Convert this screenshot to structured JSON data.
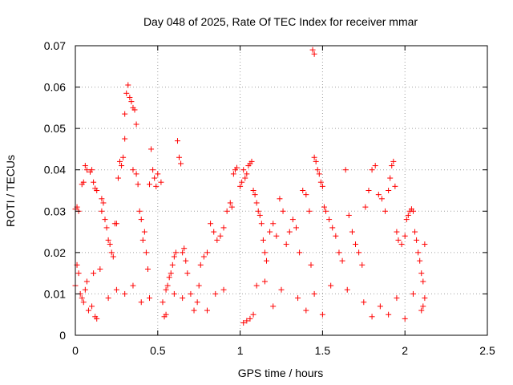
{
  "chart_data": {
    "type": "scatter",
    "title": "Day 048 of 2025, Rate Of TEC Index for receiver mmar",
    "xlabel": "GPS time / hours",
    "ylabel": "ROTI / TECUs",
    "xlim": [
      0,
      2.5
    ],
    "ylim": [
      0,
      0.07
    ],
    "x_ticks": [
      0,
      0.5,
      1,
      1.5,
      2,
      2.5
    ],
    "x_tick_labels": [
      "0",
      "0.5",
      "1",
      "1.5",
      "2",
      "2.5"
    ],
    "y_ticks": [
      0,
      0.01,
      0.02,
      0.03,
      0.04,
      0.05,
      0.06,
      0.07
    ],
    "y_tick_labels": [
      "0",
      "0.01",
      "0.02",
      "0.03",
      "0.04",
      "0.05",
      "0.06",
      "0.07"
    ],
    "grid": true,
    "marker": "+",
    "color": "#ff0000",
    "series": [
      {
        "name": "ROTI",
        "points": [
          [
            0.0,
            0.0305
          ],
          [
            0.01,
            0.031
          ],
          [
            0.02,
            0.03
          ],
          [
            0.01,
            0.017
          ],
          [
            0.02,
            0.015
          ],
          [
            0.0,
            0.012
          ],
          [
            0.03,
            0.01
          ],
          [
            0.04,
            0.009
          ],
          [
            0.05,
            0.008
          ],
          [
            0.06,
            0.011
          ],
          [
            0.07,
            0.013
          ],
          [
            0.08,
            0.006
          ],
          [
            0.04,
            0.0365
          ],
          [
            0.05,
            0.037
          ],
          [
            0.06,
            0.041
          ],
          [
            0.07,
            0.04
          ],
          [
            0.09,
            0.0395
          ],
          [
            0.1,
            0.04
          ],
          [
            0.11,
            0.037
          ],
          [
            0.12,
            0.0355
          ],
          [
            0.13,
            0.035
          ],
          [
            0.13,
            0.004
          ],
          [
            0.12,
            0.0045
          ],
          [
            0.1,
            0.007
          ],
          [
            0.11,
            0.015
          ],
          [
            0.15,
            0.016
          ],
          [
            0.16,
            0.033
          ],
          [
            0.16,
            0.03
          ],
          [
            0.17,
            0.032
          ],
          [
            0.18,
            0.028
          ],
          [
            0.19,
            0.026
          ],
          [
            0.2,
            0.023
          ],
          [
            0.21,
            0.022
          ],
          [
            0.22,
            0.02
          ],
          [
            0.23,
            0.019
          ],
          [
            0.24,
            0.027
          ],
          [
            0.25,
            0.027
          ],
          [
            0.26,
            0.038
          ],
          [
            0.27,
            0.042
          ],
          [
            0.28,
            0.041
          ],
          [
            0.29,
            0.043
          ],
          [
            0.3,
            0.0475
          ],
          [
            0.3,
            0.0535
          ],
          [
            0.31,
            0.0585
          ],
          [
            0.32,
            0.0605
          ],
          [
            0.33,
            0.0575
          ],
          [
            0.34,
            0.0565
          ],
          [
            0.35,
            0.055
          ],
          [
            0.36,
            0.0545
          ],
          [
            0.37,
            0.051
          ],
          [
            0.35,
            0.04
          ],
          [
            0.37,
            0.039
          ],
          [
            0.38,
            0.0365
          ],
          [
            0.39,
            0.03
          ],
          [
            0.4,
            0.028
          ],
          [
            0.41,
            0.023
          ],
          [
            0.42,
            0.025
          ],
          [
            0.43,
            0.02
          ],
          [
            0.44,
            0.016
          ],
          [
            0.45,
            0.0365
          ],
          [
            0.46,
            0.045
          ],
          [
            0.47,
            0.04
          ],
          [
            0.48,
            0.038
          ],
          [
            0.49,
            0.036
          ],
          [
            0.5,
            0.039
          ],
          [
            0.52,
            0.037
          ],
          [
            0.53,
            0.008
          ],
          [
            0.54,
            0.0045
          ],
          [
            0.55,
            0.005
          ],
          [
            0.56,
            0.012
          ],
          [
            0.57,
            0.014
          ],
          [
            0.58,
            0.015
          ],
          [
            0.59,
            0.017
          ],
          [
            0.6,
            0.019
          ],
          [
            0.61,
            0.02
          ],
          [
            0.62,
            0.047
          ],
          [
            0.63,
            0.043
          ],
          [
            0.64,
            0.0415
          ],
          [
            0.65,
            0.02
          ],
          [
            0.66,
            0.021
          ],
          [
            0.67,
            0.018
          ],
          [
            0.68,
            0.015
          ],
          [
            0.7,
            0.01
          ],
          [
            0.72,
            0.006
          ],
          [
            0.74,
            0.008
          ],
          [
            0.76,
            0.017
          ],
          [
            0.78,
            0.019
          ],
          [
            0.8,
            0.02
          ],
          [
            0.82,
            0.027
          ],
          [
            0.84,
            0.025
          ],
          [
            0.86,
            0.023
          ],
          [
            0.88,
            0.024
          ],
          [
            0.9,
            0.026
          ],
          [
            0.92,
            0.03
          ],
          [
            0.94,
            0.032
          ],
          [
            0.95,
            0.031
          ],
          [
            0.96,
            0.039
          ],
          [
            0.97,
            0.04
          ],
          [
            0.98,
            0.0405
          ],
          [
            1.0,
            0.036
          ],
          [
            1.01,
            0.037
          ],
          [
            1.02,
            0.04
          ],
          [
            1.03,
            0.038
          ],
          [
            1.04,
            0.039
          ],
          [
            1.05,
            0.041
          ],
          [
            1.06,
            0.0415
          ],
          [
            1.07,
            0.042
          ],
          [
            1.08,
            0.035
          ],
          [
            1.09,
            0.034
          ],
          [
            1.1,
            0.032
          ],
          [
            1.11,
            0.03
          ],
          [
            1.12,
            0.029
          ],
          [
            1.13,
            0.027
          ],
          [
            1.14,
            0.023
          ],
          [
            1.15,
            0.02
          ],
          [
            1.16,
            0.018
          ],
          [
            1.02,
            0.003
          ],
          [
            1.04,
            0.0035
          ],
          [
            1.06,
            0.004
          ],
          [
            1.08,
            0.005
          ],
          [
            1.18,
            0.025
          ],
          [
            1.2,
            0.027
          ],
          [
            1.22,
            0.024
          ],
          [
            1.24,
            0.033
          ],
          [
            1.26,
            0.03
          ],
          [
            1.28,
            0.022
          ],
          [
            1.3,
            0.025
          ],
          [
            1.32,
            0.028
          ],
          [
            1.34,
            0.026
          ],
          [
            1.36,
            0.02
          ],
          [
            1.38,
            0.035
          ],
          [
            1.4,
            0.034
          ],
          [
            1.42,
            0.03
          ],
          [
            1.43,
            0.017
          ],
          [
            1.44,
            0.069
          ],
          [
            1.45,
            0.068
          ],
          [
            1.45,
            0.043
          ],
          [
            1.46,
            0.042
          ],
          [
            1.47,
            0.04
          ],
          [
            1.48,
            0.039
          ],
          [
            1.49,
            0.037
          ],
          [
            1.5,
            0.036
          ],
          [
            1.51,
            0.031
          ],
          [
            1.52,
            0.03
          ],
          [
            1.54,
            0.028
          ],
          [
            1.56,
            0.026
          ],
          [
            1.58,
            0.024
          ],
          [
            1.6,
            0.02
          ],
          [
            1.62,
            0.018
          ],
          [
            1.64,
            0.04
          ],
          [
            1.66,
            0.029
          ],
          [
            1.68,
            0.025
          ],
          [
            1.7,
            0.022
          ],
          [
            1.72,
            0.02
          ],
          [
            1.74,
            0.017
          ],
          [
            1.76,
            0.031
          ],
          [
            1.78,
            0.035
          ],
          [
            1.8,
            0.04
          ],
          [
            1.82,
            0.041
          ],
          [
            1.84,
            0.034
          ],
          [
            1.86,
            0.033
          ],
          [
            1.88,
            0.03
          ],
          [
            1.9,
            0.035
          ],
          [
            1.91,
            0.038
          ],
          [
            1.92,
            0.041
          ],
          [
            1.93,
            0.042
          ],
          [
            1.94,
            0.036
          ],
          [
            1.95,
            0.025
          ],
          [
            1.96,
            0.023
          ],
          [
            1.98,
            0.022
          ],
          [
            2.0,
            0.024
          ],
          [
            2.01,
            0.028
          ],
          [
            2.02,
            0.029
          ],
          [
            2.03,
            0.03
          ],
          [
            2.04,
            0.0305
          ],
          [
            2.05,
            0.03
          ],
          [
            2.06,
            0.025
          ],
          [
            2.07,
            0.023
          ],
          [
            2.08,
            0.02
          ],
          [
            2.09,
            0.018
          ],
          [
            2.1,
            0.015
          ],
          [
            2.11,
            0.013
          ],
          [
            2.12,
            0.022
          ],
          [
            2.12,
            0.009
          ],
          [
            2.11,
            0.007
          ],
          [
            2.1,
            0.006
          ],
          [
            0.2,
            0.009
          ],
          [
            0.25,
            0.011
          ],
          [
            0.3,
            0.01
          ],
          [
            0.35,
            0.012
          ],
          [
            0.4,
            0.008
          ],
          [
            0.45,
            0.009
          ],
          [
            0.55,
            0.011
          ],
          [
            0.6,
            0.01
          ],
          [
            0.65,
            0.009
          ],
          [
            0.75,
            0.012
          ],
          [
            0.85,
            0.01
          ],
          [
            0.9,
            0.011
          ],
          [
            1.1,
            0.012
          ],
          [
            1.15,
            0.013
          ],
          [
            1.25,
            0.011
          ],
          [
            1.35,
            0.009
          ],
          [
            1.45,
            0.01
          ],
          [
            1.55,
            0.012
          ],
          [
            1.65,
            0.011
          ],
          [
            1.75,
            0.008
          ],
          [
            1.85,
            0.007
          ],
          [
            1.95,
            0.009
          ],
          [
            2.05,
            0.01
          ],
          [
            1.8,
            0.0045
          ],
          [
            2.0,
            0.004
          ],
          [
            1.9,
            0.005
          ],
          [
            1.5,
            0.005
          ],
          [
            1.4,
            0.006
          ],
          [
            1.2,
            0.007
          ],
          [
            0.8,
            0.006
          ]
        ]
      }
    ]
  }
}
